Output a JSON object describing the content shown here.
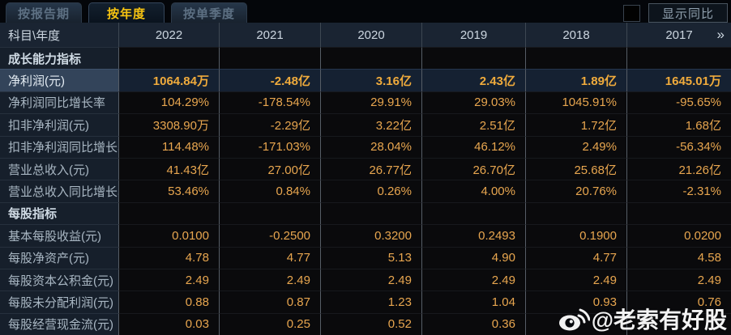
{
  "tabs": [
    {
      "label": "按报告期",
      "active": false
    },
    {
      "label": "按年度",
      "active": true
    },
    {
      "label": "按单季度",
      "active": false
    }
  ],
  "controls": {
    "show_yoy_label": "显示同比",
    "checkbox_checked": false
  },
  "table": {
    "corner_header": "科目\\年度",
    "year_columns": [
      "2022",
      "2021",
      "2020",
      "2019",
      "2018",
      "2017"
    ],
    "more_icon": "»",
    "rows": [
      {
        "type": "section",
        "label": "成长能力指标"
      },
      {
        "type": "data",
        "label": "净利润(元)",
        "highlight": true,
        "values": [
          "1064.84万",
          "-2.48亿",
          "3.16亿",
          "2.43亿",
          "1.89亿",
          "1645.01万"
        ]
      },
      {
        "type": "data",
        "label": "净利润同比增长率",
        "values": [
          "104.29%",
          "-178.54%",
          "29.91%",
          "29.03%",
          "1045.91%",
          "-95.65%"
        ]
      },
      {
        "type": "data",
        "label": "扣非净利润(元)",
        "values": [
          "3308.90万",
          "-2.29亿",
          "3.22亿",
          "2.51亿",
          "1.72亿",
          "1.68亿"
        ]
      },
      {
        "type": "data",
        "label": "扣非净利润同比增长率",
        "values": [
          "114.48%",
          "-171.03%",
          "28.04%",
          "46.12%",
          "2.49%",
          "-56.34%"
        ]
      },
      {
        "type": "data",
        "label": "营业总收入(元)",
        "values": [
          "41.43亿",
          "27.00亿",
          "26.77亿",
          "26.70亿",
          "25.68亿",
          "21.26亿"
        ]
      },
      {
        "type": "data",
        "label": "营业总收入同比增长率",
        "values": [
          "53.46%",
          "0.84%",
          "0.26%",
          "4.00%",
          "20.76%",
          "-2.31%"
        ]
      },
      {
        "type": "section",
        "label": "每股指标"
      },
      {
        "type": "data",
        "label": "基本每股收益(元)",
        "values": [
          "0.0100",
          "-0.2500",
          "0.3200",
          "0.2493",
          "0.1900",
          "0.0200"
        ]
      },
      {
        "type": "data",
        "label": "每股净资产(元)",
        "values": [
          "4.78",
          "4.77",
          "5.13",
          "4.90",
          "4.77",
          "4.58"
        ]
      },
      {
        "type": "data",
        "label": "每股资本公积金(元)",
        "values": [
          "2.49",
          "2.49",
          "2.49",
          "2.49",
          "2.49",
          "2.49"
        ]
      },
      {
        "type": "data",
        "label": "每股未分配利润(元)",
        "values": [
          "0.88",
          "0.87",
          "1.23",
          "1.04",
          "0.93",
          "0.76"
        ]
      },
      {
        "type": "data",
        "label": "每股经营现金流(元)",
        "values": [
          "0.03",
          "0.25",
          "0.52",
          "0.36",
          "",
          ""
        ]
      }
    ]
  },
  "watermark": {
    "text": "@老索有好股",
    "icon": "weibo-logo"
  },
  "colors": {
    "accent_yellow": "#f7c411",
    "value_orange": "#e8a64f",
    "highlight_value": "#f0ab3c",
    "header_bg": "#1a2432",
    "row_label_bg": "#161f2b",
    "highlight_row_bg": "#33445a",
    "data_cell_bg": "#0a0a0c"
  }
}
